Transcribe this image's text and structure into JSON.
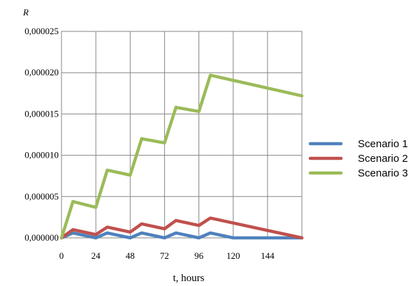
{
  "chart_data": {
    "type": "line",
    "title": "",
    "xlabel": "t, hours",
    "ylabel": "R",
    "xlim": [
      0,
      168
    ],
    "ylim": [
      0,
      2.5e-05
    ],
    "x_ticks": [
      0,
      24,
      48,
      72,
      96,
      120,
      144
    ],
    "x_tick_labels": [
      "0",
      "24",
      "48",
      "72",
      "96",
      "120",
      "144"
    ],
    "y_ticks": [
      0,
      5e-06,
      1e-05,
      1.5e-05,
      2e-05,
      2.5e-05
    ],
    "y_tick_labels": [
      "0,000000",
      "0,000005",
      "0,000010",
      "0,000015",
      "0,000020",
      "0,000025"
    ],
    "grid": true,
    "legend_position": "right",
    "series": [
      {
        "name": "Scenario 1",
        "color": "#4f81bd",
        "x": [
          0,
          8,
          24,
          32,
          48,
          56,
          72,
          80,
          96,
          104,
          120,
          168
        ],
        "y": [
          0,
          6e-07,
          0,
          6e-07,
          0,
          6e-07,
          0,
          6e-07,
          0,
          6e-07,
          0,
          0
        ]
      },
      {
        "name": "Scenario 2",
        "color": "#c0504d",
        "x": [
          0,
          8,
          24,
          32,
          48,
          56,
          72,
          80,
          96,
          104,
          168
        ],
        "y": [
          0,
          1e-06,
          4e-07,
          1.3e-06,
          7e-07,
          1.7e-06,
          1.1e-06,
          2.1e-06,
          1.5e-06,
          2.4e-06,
          0
        ]
      },
      {
        "name": "Scenario 3",
        "color": "#9bbb59",
        "x": [
          0,
          8,
          24,
          32,
          48,
          56,
          72,
          80,
          96,
          104,
          168
        ],
        "y": [
          0,
          4.4e-06,
          3.7e-06,
          8.2e-06,
          7.6e-06,
          1.2e-05,
          1.15e-05,
          1.58e-05,
          1.53e-05,
          1.97e-05,
          1.72e-05
        ]
      }
    ]
  }
}
